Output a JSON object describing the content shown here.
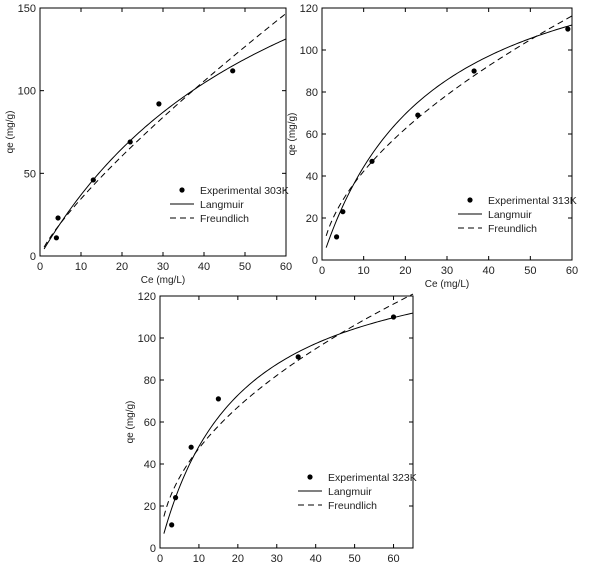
{
  "chart_data": [
    {
      "type": "scatter",
      "title": "",
      "xlabel": "Ce (mg/L)",
      "ylabel": "qe (mg/g)",
      "xlim": [
        0,
        60
      ],
      "ylim": [
        0,
        150
      ],
      "xticks": [
        "0",
        "10",
        "20",
        "30",
        "40",
        "50",
        "60"
      ],
      "yticks": [
        "0",
        "50",
        "100",
        "150"
      ],
      "grid": false,
      "legend_position": "lower-right",
      "series": [
        {
          "name": "Experimental 303K",
          "kind": "points",
          "x": [
            4.0,
            4.4,
            13.0,
            22.0,
            29.0,
            47.0
          ],
          "y": [
            11.0,
            23.0,
            46.0,
            69.0,
            92.0,
            112.0
          ]
        },
        {
          "name": "Langmuir",
          "kind": "solid",
          "model": {
            "type": "langmuir",
            "qm": 268,
            "kl": 0.016
          },
          "xrange": [
            1,
            60
          ]
        },
        {
          "name": "Freundlich",
          "kind": "dashed",
          "model": {
            "type": "freundlich",
            "kf": 5.4,
            "n": 1.24
          },
          "xrange": [
            1,
            60
          ]
        }
      ]
    },
    {
      "type": "scatter",
      "title": "",
      "xlabel": "Ce (mg/L)",
      "ylabel": "qe (mg/g)",
      "xlim": [
        0,
        60
      ],
      "ylim": [
        0,
        120
      ],
      "xticks": [
        "0",
        "10",
        "20",
        "30",
        "40",
        "50",
        "60"
      ],
      "yticks": [
        "0",
        "20",
        "40",
        "60",
        "80",
        "100",
        "120"
      ],
      "grid": false,
      "legend_position": "lower-right",
      "series": [
        {
          "name": "Experimental 313K",
          "kind": "points",
          "x": [
            3.5,
            5.0,
            12.0,
            23.0,
            36.5,
            59.0
          ],
          "y": [
            11.0,
            23.0,
            47.0,
            69.0,
            90.0,
            110.0
          ]
        },
        {
          "name": "Langmuir",
          "kind": "solid",
          "model": {
            "type": "langmuir",
            "qm": 161,
            "kl": 0.038
          },
          "xrange": [
            1,
            60
          ]
        },
        {
          "name": "Freundlich",
          "kind": "dashed",
          "model": {
            "type": "freundlich",
            "kf": 11.5,
            "n": 1.77
          },
          "xrange": [
            1,
            60
          ]
        }
      ]
    },
    {
      "type": "scatter",
      "title": "",
      "xlabel": "Ce (mg/L)",
      "ylabel": "qe (mg/g)",
      "xlim": [
        0,
        65
      ],
      "ylim": [
        0,
        120
      ],
      "xticks": [
        "0",
        "10",
        "20",
        "30",
        "40",
        "50",
        "60"
      ],
      "yticks": [
        "0",
        "20",
        "40",
        "60",
        "80",
        "100",
        "120"
      ],
      "grid": false,
      "legend_position": "lower-right",
      "series": [
        {
          "name": "Experimental 323K",
          "kind": "points",
          "x": [
            3.0,
            4.0,
            8.0,
            15.0,
            35.5,
            60.0
          ],
          "y": [
            11.0,
            24.0,
            48.0,
            71.0,
            91.0,
            110.0
          ]
        },
        {
          "name": "Langmuir",
          "kind": "solid",
          "model": {
            "type": "langmuir",
            "qm": 147,
            "kl": 0.049
          },
          "xrange": [
            1,
            65
          ]
        },
        {
          "name": "Freundlich",
          "kind": "dashed",
          "model": {
            "type": "freundlich",
            "kf": 15.0,
            "n": 2.0
          },
          "xrange": [
            1,
            65
          ]
        }
      ]
    }
  ]
}
